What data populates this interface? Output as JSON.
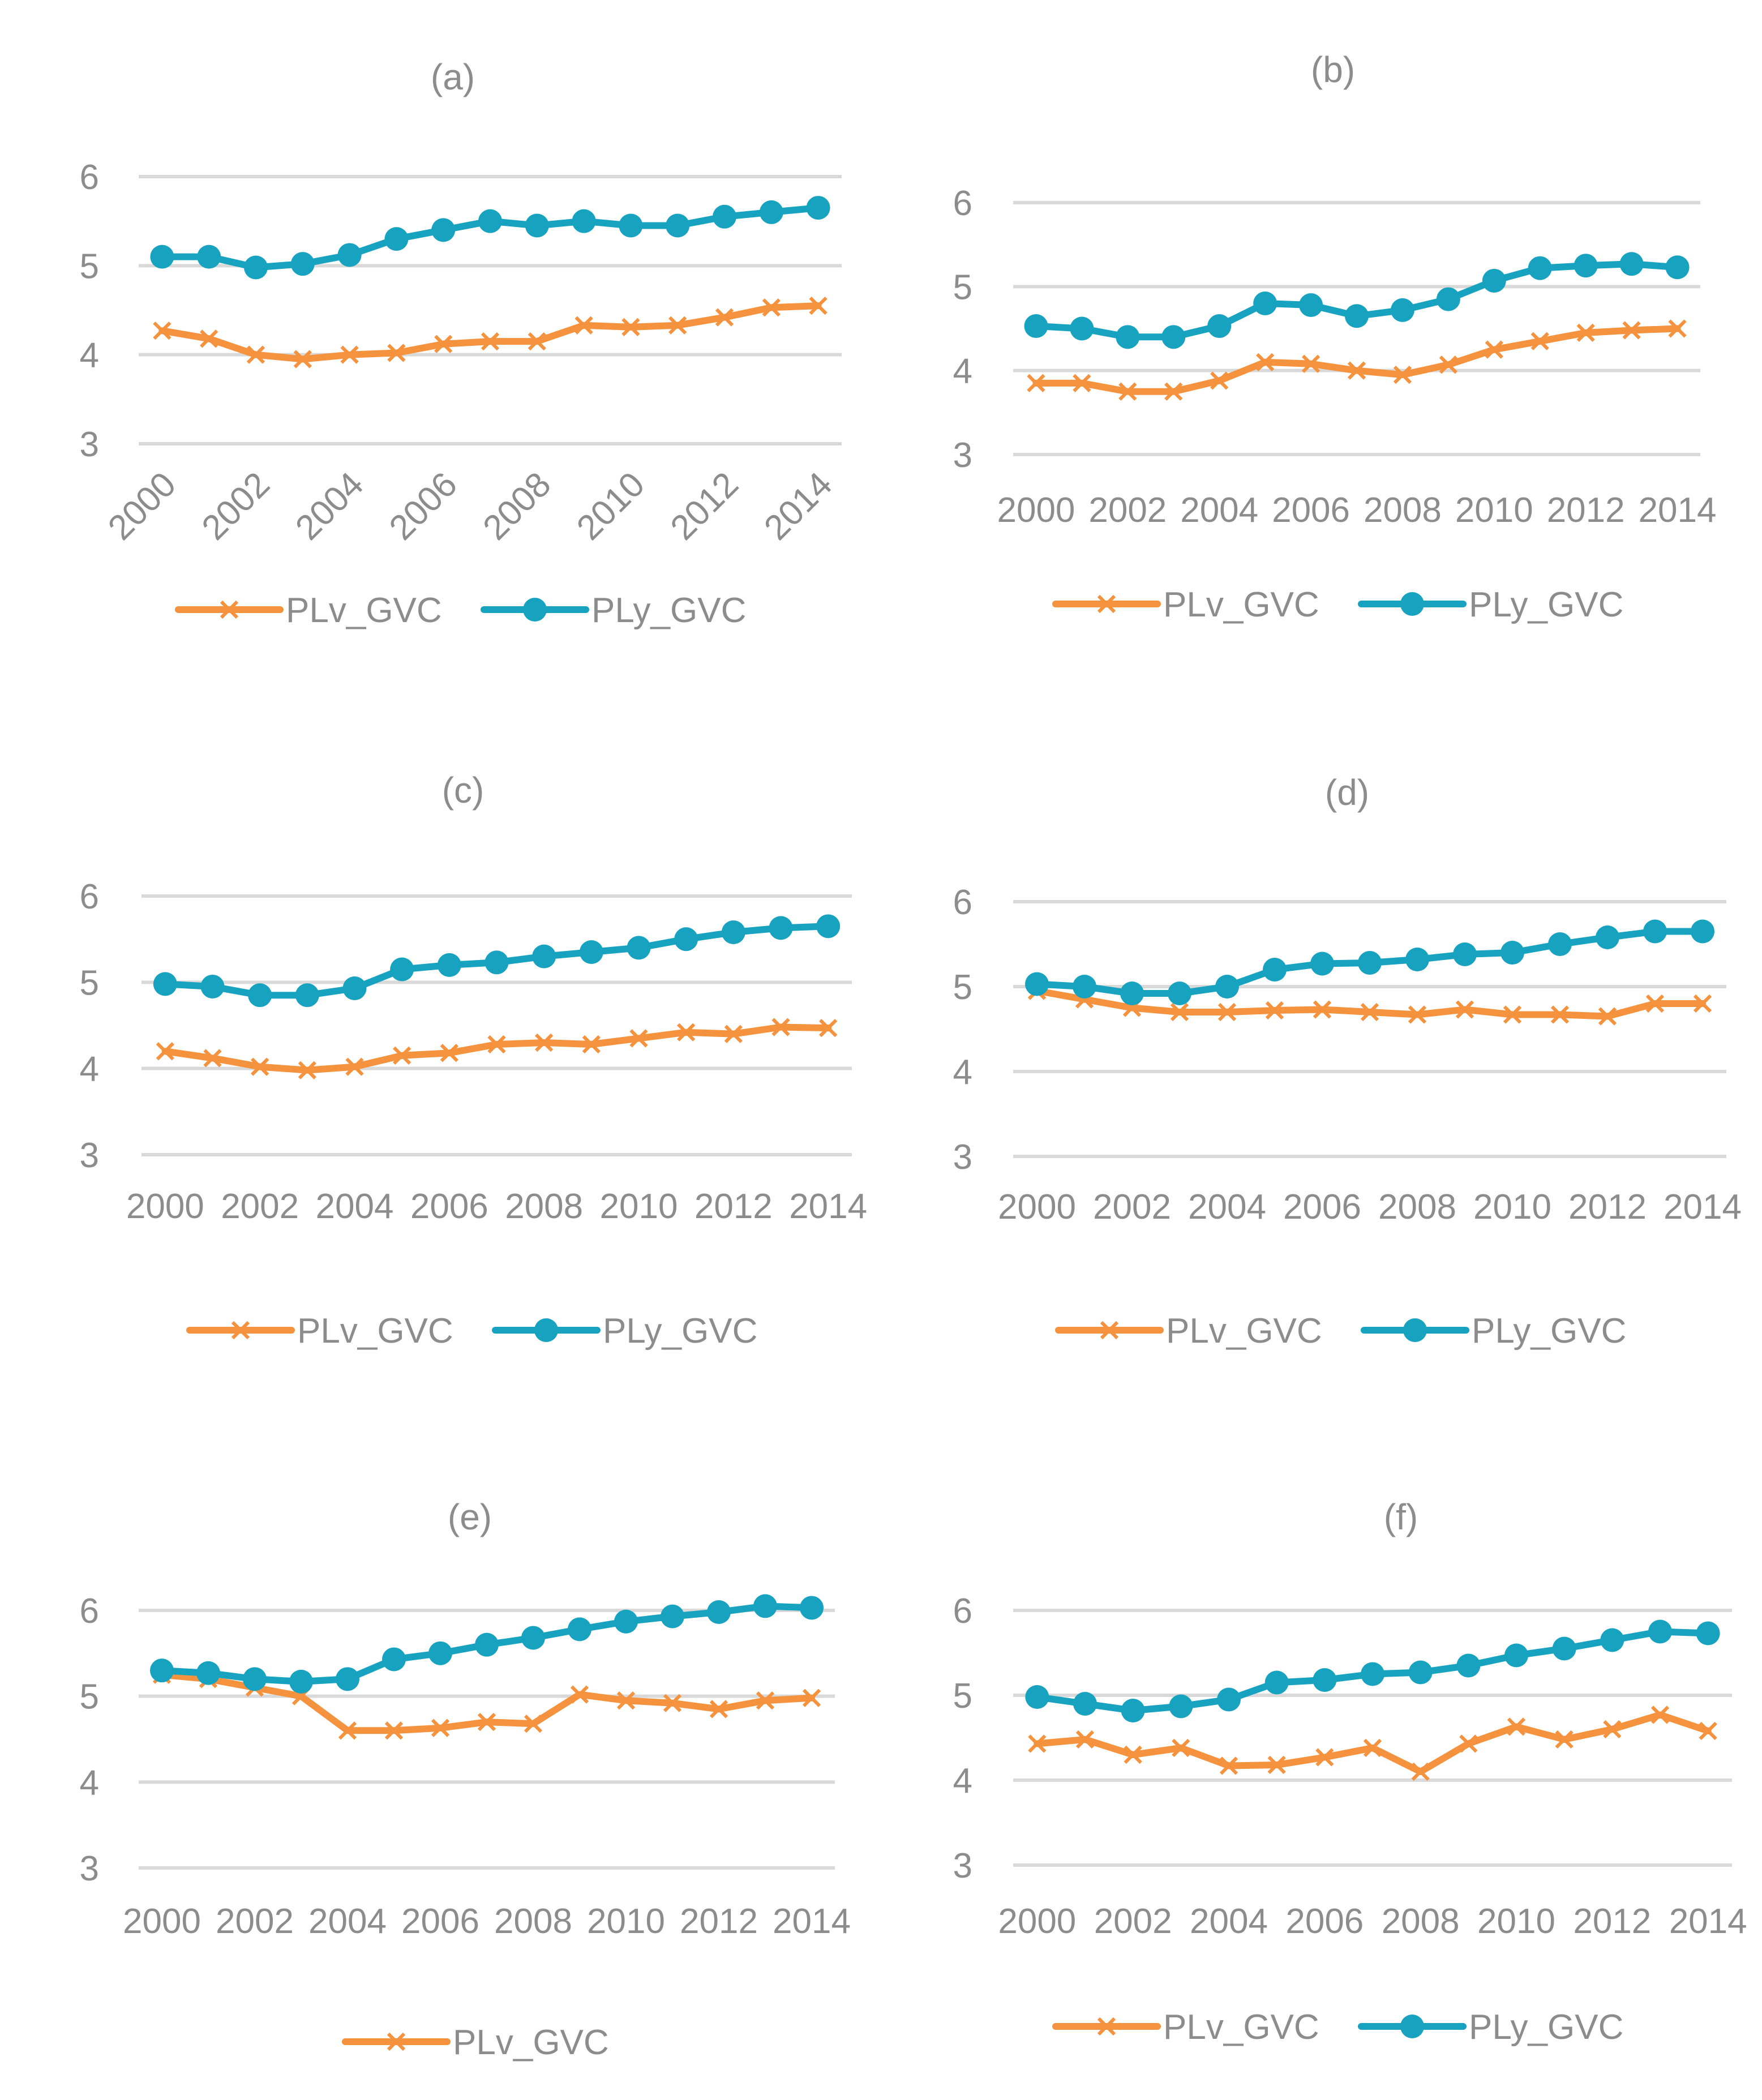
{
  "chart_data": [
    {
      "id": "a",
      "type": "line",
      "title": "(a)",
      "categories": [
        "2000",
        "2001",
        "2002",
        "2003",
        "2004",
        "2005",
        "2006",
        "2007",
        "2008",
        "2009",
        "2010",
        "2011",
        "2012",
        "2013",
        "2014"
      ],
      "x_tick_labels": [
        "2000",
        "2002",
        "2004",
        "2006",
        "2008",
        "2010",
        "2012",
        "2014"
      ],
      "x_tick_rotation": -45,
      "yticks": [
        3,
        4,
        5,
        6
      ],
      "ylim": [
        3,
        6
      ],
      "xlabel": "",
      "ylabel": "",
      "grid": true,
      "legend_position": "bottom",
      "series": [
        {
          "name": "PLv_GVC",
          "color": "#f5923e",
          "marker": "x",
          "values": [
            4.27,
            4.18,
            4.0,
            3.95,
            4.0,
            4.02,
            4.12,
            4.15,
            4.15,
            4.33,
            4.31,
            4.33,
            4.42,
            4.53,
            4.55
          ]
        },
        {
          "name": "PLy_GVC",
          "color": "#17a3bf",
          "marker": "circle",
          "values": [
            5.1,
            5.1,
            4.98,
            5.02,
            5.12,
            5.3,
            5.4,
            5.5,
            5.45,
            5.5,
            5.45,
            5.45,
            5.55,
            5.6,
            5.65
          ]
        }
      ]
    },
    {
      "id": "b",
      "type": "line",
      "title": "(b)",
      "categories": [
        "2000",
        "2001",
        "2002",
        "2003",
        "2004",
        "2005",
        "2006",
        "2007",
        "2008",
        "2009",
        "2010",
        "2011",
        "2012",
        "2013",
        "2014"
      ],
      "x_tick_labels": [
        "2000",
        "2002",
        "2004",
        "2006",
        "2008",
        "2010",
        "2012",
        "2014"
      ],
      "x_tick_rotation": 0,
      "yticks": [
        3,
        4,
        5,
        6
      ],
      "ylim": [
        3,
        6
      ],
      "xlabel": "",
      "ylabel": "",
      "grid": true,
      "legend_position": "bottom",
      "series": [
        {
          "name": "PLv_GVC",
          "color": "#f5923e",
          "marker": "x",
          "values": [
            3.85,
            3.85,
            3.75,
            3.75,
            3.88,
            4.1,
            4.08,
            4.0,
            3.95,
            4.07,
            4.25,
            4.35,
            4.45,
            4.48,
            4.5
          ]
        },
        {
          "name": "PLy_GVC",
          "color": "#17a3bf",
          "marker": "circle",
          "values": [
            4.53,
            4.5,
            4.4,
            4.4,
            4.53,
            4.8,
            4.78,
            4.65,
            4.72,
            4.85,
            5.07,
            5.22,
            5.25,
            5.27,
            5.23
          ]
        }
      ]
    },
    {
      "id": "c",
      "type": "line",
      "title": "(c)",
      "categories": [
        "2000",
        "2001",
        "2002",
        "2003",
        "2004",
        "2005",
        "2006",
        "2007",
        "2008",
        "2009",
        "2010",
        "2011",
        "2012",
        "2013",
        "2014"
      ],
      "x_tick_labels": [
        "2000",
        "2002",
        "2004",
        "2006",
        "2008",
        "2010",
        "2012",
        "2014"
      ],
      "x_tick_rotation": 0,
      "yticks": [
        3,
        4,
        5,
        6
      ],
      "ylim": [
        3,
        6
      ],
      "xlabel": "",
      "ylabel": "",
      "grid": true,
      "legend_position": "bottom",
      "series": [
        {
          "name": "PLv_GVC",
          "color": "#f5923e",
          "marker": "x",
          "values": [
            4.2,
            4.12,
            4.02,
            3.98,
            4.02,
            4.15,
            4.18,
            4.28,
            4.3,
            4.28,
            4.35,
            4.42,
            4.4,
            4.48,
            4.47
          ]
        },
        {
          "name": "PLy_GVC",
          "color": "#17a3bf",
          "marker": "circle",
          "values": [
            4.98,
            4.95,
            4.85,
            4.85,
            4.93,
            5.15,
            5.2,
            5.23,
            5.3,
            5.35,
            5.4,
            5.5,
            5.58,
            5.63,
            5.65
          ]
        }
      ]
    },
    {
      "id": "d",
      "type": "line",
      "title": "(d)",
      "categories": [
        "2000",
        "2001",
        "2002",
        "2003",
        "2004",
        "2005",
        "2006",
        "2007",
        "2008",
        "2009",
        "2010",
        "2011",
        "2012",
        "2013",
        "2014"
      ],
      "x_tick_labels": [
        "2000",
        "2002",
        "2004",
        "2006",
        "2008",
        "2010",
        "2012",
        "2014"
      ],
      "x_tick_rotation": 0,
      "yticks": [
        3,
        4,
        5,
        6
      ],
      "ylim": [
        3,
        6
      ],
      "xlabel": "",
      "ylabel": "",
      "grid": true,
      "legend_position": "bottom",
      "series": [
        {
          "name": "PLv_GVC",
          "color": "#f5923e",
          "marker": "x",
          "values": [
            4.95,
            4.85,
            4.75,
            4.7,
            4.7,
            4.72,
            4.73,
            4.7,
            4.67,
            4.73,
            4.67,
            4.67,
            4.65,
            4.8,
            4.8
          ]
        },
        {
          "name": "PLy_GVC",
          "color": "#17a3bf",
          "marker": "circle",
          "values": [
            5.03,
            5.0,
            4.92,
            4.92,
            5.0,
            5.2,
            5.27,
            5.28,
            5.32,
            5.38,
            5.4,
            5.5,
            5.58,
            5.65,
            5.65
          ]
        }
      ]
    },
    {
      "id": "e",
      "type": "line",
      "title": "(e)",
      "categories": [
        "2000",
        "2001",
        "2002",
        "2003",
        "2004",
        "2005",
        "2006",
        "2007",
        "2008",
        "2009",
        "2010",
        "2011",
        "2012",
        "2013",
        "2014"
      ],
      "x_tick_labels": [
        "2000",
        "2002",
        "2004",
        "2006",
        "2008",
        "2010",
        "2012",
        "2014"
      ],
      "x_tick_rotation": 0,
      "yticks": [
        3,
        4,
        5,
        6
      ],
      "ylim": [
        3,
        6
      ],
      "xlabel": "",
      "ylabel": "",
      "grid": true,
      "legend_position": "bottom",
      "series": [
        {
          "name": "PLv_GVC",
          "color": "#f5923e",
          "marker": "x",
          "values": [
            5.25,
            5.2,
            5.1,
            5.0,
            4.6,
            4.6,
            4.63,
            4.7,
            4.68,
            5.02,
            4.95,
            4.92,
            4.85,
            4.95,
            4.98
          ]
        },
        {
          "name": "PLy_GVC",
          "color": "#17a3bf",
          "marker": "circle",
          "values": [
            5.3,
            5.27,
            5.2,
            5.17,
            5.2,
            5.43,
            5.5,
            5.6,
            5.68,
            5.78,
            5.87,
            5.93,
            5.98,
            6.05,
            6.03
          ],
          "show_in_legend": false
        }
      ]
    },
    {
      "id": "f",
      "type": "line",
      "title": "(f)",
      "categories": [
        "2000",
        "2001",
        "2002",
        "2003",
        "2004",
        "2005",
        "2006",
        "2007",
        "2008",
        "2009",
        "2010",
        "2011",
        "2012",
        "2013",
        "2014"
      ],
      "x_tick_labels": [
        "2000",
        "2002",
        "2004",
        "2006",
        "2008",
        "2010",
        "2012",
        "2014"
      ],
      "x_tick_rotation": 0,
      "yticks": [
        3,
        4,
        5,
        6
      ],
      "ylim": [
        3,
        6
      ],
      "xlabel": "",
      "ylabel": "",
      "grid": true,
      "legend_position": "bottom",
      "series": [
        {
          "name": "PLv_GVC",
          "color": "#f5923e",
          "marker": "x",
          "values": [
            4.43,
            4.48,
            4.3,
            4.38,
            4.17,
            4.18,
            4.27,
            4.38,
            4.1,
            4.43,
            4.63,
            4.48,
            4.6,
            4.77,
            4.58
          ]
        },
        {
          "name": "PLy_GVC",
          "color": "#17a3bf",
          "marker": "circle",
          "values": [
            4.98,
            4.9,
            4.82,
            4.87,
            4.95,
            5.15,
            5.18,
            5.25,
            5.27,
            5.35,
            5.47,
            5.55,
            5.65,
            5.75,
            5.73
          ]
        }
      ]
    }
  ]
}
